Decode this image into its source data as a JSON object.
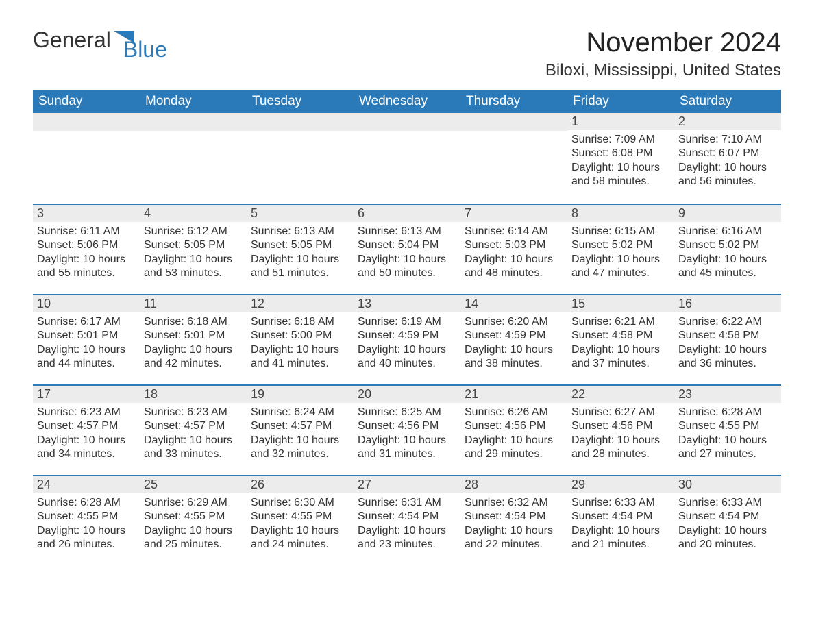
{
  "brand": {
    "name1": "General",
    "name2": "Blue"
  },
  "title": "November 2024",
  "location": "Biloxi, Mississippi, United States",
  "colors": {
    "header_bg": "#2a7ab9",
    "header_text": "#ffffff",
    "daynum_bg": "#ececec",
    "daynum_border": "#2a7ab9",
    "body_text": "#333333",
    "page_bg": "#ffffff"
  },
  "fonts": {
    "title_size_pt": 30,
    "subtitle_size_pt": 18,
    "th_size_pt": 14,
    "cell_size_pt": 12
  },
  "calendar": {
    "columns": [
      "Sunday",
      "Monday",
      "Tuesday",
      "Wednesday",
      "Thursday",
      "Friday",
      "Saturday"
    ],
    "weeks": [
      [
        null,
        null,
        null,
        null,
        null,
        {
          "n": 1,
          "sunrise": "7:09 AM",
          "sunset": "6:08 PM",
          "daylight": "10 hours and 58 minutes."
        },
        {
          "n": 2,
          "sunrise": "7:10 AM",
          "sunset": "6:07 PM",
          "daylight": "10 hours and 56 minutes."
        }
      ],
      [
        {
          "n": 3,
          "sunrise": "6:11 AM",
          "sunset": "5:06 PM",
          "daylight": "10 hours and 55 minutes."
        },
        {
          "n": 4,
          "sunrise": "6:12 AM",
          "sunset": "5:05 PM",
          "daylight": "10 hours and 53 minutes."
        },
        {
          "n": 5,
          "sunrise": "6:13 AM",
          "sunset": "5:05 PM",
          "daylight": "10 hours and 51 minutes."
        },
        {
          "n": 6,
          "sunrise": "6:13 AM",
          "sunset": "5:04 PM",
          "daylight": "10 hours and 50 minutes."
        },
        {
          "n": 7,
          "sunrise": "6:14 AM",
          "sunset": "5:03 PM",
          "daylight": "10 hours and 48 minutes."
        },
        {
          "n": 8,
          "sunrise": "6:15 AM",
          "sunset": "5:02 PM",
          "daylight": "10 hours and 47 minutes."
        },
        {
          "n": 9,
          "sunrise": "6:16 AM",
          "sunset": "5:02 PM",
          "daylight": "10 hours and 45 minutes."
        }
      ],
      [
        {
          "n": 10,
          "sunrise": "6:17 AM",
          "sunset": "5:01 PM",
          "daylight": "10 hours and 44 minutes."
        },
        {
          "n": 11,
          "sunrise": "6:18 AM",
          "sunset": "5:01 PM",
          "daylight": "10 hours and 42 minutes."
        },
        {
          "n": 12,
          "sunrise": "6:18 AM",
          "sunset": "5:00 PM",
          "daylight": "10 hours and 41 minutes."
        },
        {
          "n": 13,
          "sunrise": "6:19 AM",
          "sunset": "4:59 PM",
          "daylight": "10 hours and 40 minutes."
        },
        {
          "n": 14,
          "sunrise": "6:20 AM",
          "sunset": "4:59 PM",
          "daylight": "10 hours and 38 minutes."
        },
        {
          "n": 15,
          "sunrise": "6:21 AM",
          "sunset": "4:58 PM",
          "daylight": "10 hours and 37 minutes."
        },
        {
          "n": 16,
          "sunrise": "6:22 AM",
          "sunset": "4:58 PM",
          "daylight": "10 hours and 36 minutes."
        }
      ],
      [
        {
          "n": 17,
          "sunrise": "6:23 AM",
          "sunset": "4:57 PM",
          "daylight": "10 hours and 34 minutes."
        },
        {
          "n": 18,
          "sunrise": "6:23 AM",
          "sunset": "4:57 PM",
          "daylight": "10 hours and 33 minutes."
        },
        {
          "n": 19,
          "sunrise": "6:24 AM",
          "sunset": "4:57 PM",
          "daylight": "10 hours and 32 minutes."
        },
        {
          "n": 20,
          "sunrise": "6:25 AM",
          "sunset": "4:56 PM",
          "daylight": "10 hours and 31 minutes."
        },
        {
          "n": 21,
          "sunrise": "6:26 AM",
          "sunset": "4:56 PM",
          "daylight": "10 hours and 29 minutes."
        },
        {
          "n": 22,
          "sunrise": "6:27 AM",
          "sunset": "4:56 PM",
          "daylight": "10 hours and 28 minutes."
        },
        {
          "n": 23,
          "sunrise": "6:28 AM",
          "sunset": "4:55 PM",
          "daylight": "10 hours and 27 minutes."
        }
      ],
      [
        {
          "n": 24,
          "sunrise": "6:28 AM",
          "sunset": "4:55 PM",
          "daylight": "10 hours and 26 minutes."
        },
        {
          "n": 25,
          "sunrise": "6:29 AM",
          "sunset": "4:55 PM",
          "daylight": "10 hours and 25 minutes."
        },
        {
          "n": 26,
          "sunrise": "6:30 AM",
          "sunset": "4:55 PM",
          "daylight": "10 hours and 24 minutes."
        },
        {
          "n": 27,
          "sunrise": "6:31 AM",
          "sunset": "4:54 PM",
          "daylight": "10 hours and 23 minutes."
        },
        {
          "n": 28,
          "sunrise": "6:32 AM",
          "sunset": "4:54 PM",
          "daylight": "10 hours and 22 minutes."
        },
        {
          "n": 29,
          "sunrise": "6:33 AM",
          "sunset": "4:54 PM",
          "daylight": "10 hours and 21 minutes."
        },
        {
          "n": 30,
          "sunrise": "6:33 AM",
          "sunset": "4:54 PM",
          "daylight": "10 hours and 20 minutes."
        }
      ]
    ],
    "labels": {
      "sunrise": "Sunrise: ",
      "sunset": "Sunset: ",
      "daylight": "Daylight: "
    }
  }
}
